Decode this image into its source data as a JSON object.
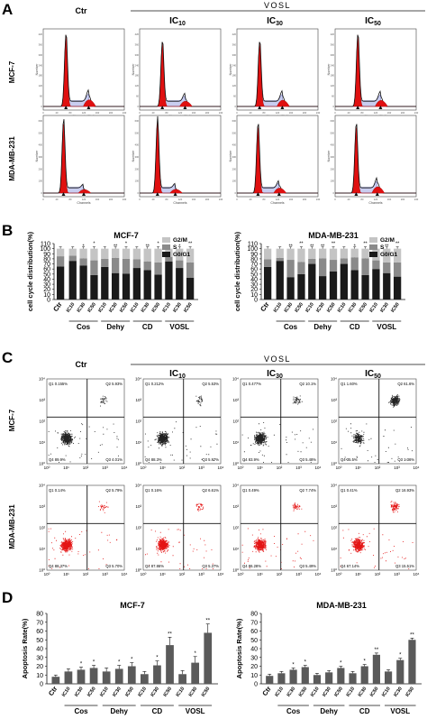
{
  "panels": {
    "A": {
      "letter": "A",
      "ctr_label": "Ctr",
      "group_label": "VOSL",
      "ic_labels": [
        {
          "base": "IC",
          "sub": "10"
        },
        {
          "base": "IC",
          "sub": "30"
        },
        {
          "base": "IC",
          "sub": "50"
        }
      ],
      "row_labels": [
        "MCF-7",
        "MDA-MB-231"
      ],
      "hist_xlabel": "Channels (PI-A)",
      "hist_xlabel_row2": "Channels",
      "hist_ylabel": "Number",
      "hist_ticks": [
        "0",
        "40",
        "80",
        "120",
        "160",
        "200",
        "240"
      ],
      "hist_yticks": [
        "0",
        "60",
        "120",
        "180",
        "240",
        "300",
        "360",
        "420"
      ],
      "hist_yticks_row2": [
        "0",
        "100",
        "200",
        "300",
        "400",
        "500",
        "600"
      ]
    },
    "B": {
      "letter": "B"
    },
    "C": {
      "letter": "C",
      "ctr_label": "Ctr",
      "group_label": "VOSL",
      "ic_labels": [
        {
          "base": "IC",
          "sub": "10"
        },
        {
          "base": "IC",
          "sub": "30"
        },
        {
          "base": "IC",
          "sub": "50"
        }
      ],
      "row_labels": [
        "MCF-7",
        "MDA-MB-231"
      ],
      "axis_ticks": [
        "10⁰",
        "10¹",
        "10²",
        "10³",
        "10⁴"
      ],
      "quadrants": {
        "mcf7": [
          {
            "q1": "Q1 0.155%",
            "q2": "Q2 5.93%",
            "q4": "Q4 89.9%",
            "q3": "Q3 4.01%"
          },
          {
            "q1": "Q1 0.212%",
            "q2": "Q2 5.53%",
            "q4": "Q4 88.3%",
            "q3": "Q3 5.97%"
          },
          {
            "q1": "Q1 0.477%",
            "q2": "Q2 10.1%",
            "q4": "Q4 83.9%",
            "q3": "Q3 5.48%"
          },
          {
            "q1": "Q1 1.60%",
            "q2": "Q2 61.6%",
            "q4": "Q4 35.5%",
            "q3": "Q3 1.36%"
          }
        ],
        "mda": [
          {
            "q1": "Q1 0.14%",
            "q2": "Q2 5.79%",
            "q4": "Q4 88.37%",
            "q3": "Q3 5.70%"
          },
          {
            "q1": "Q1 0.16%",
            "q2": "Q2 6.61%",
            "q4": "Q4 87.86%",
            "q3": "Q3 5.37%"
          },
          {
            "q1": "Q1 0.49%",
            "q2": "Q2 7.74%",
            "q4": "Q4 86.28%",
            "q3": "Q3 5.49%"
          },
          {
            "q1": "Q1 0.41%",
            "q2": "Q2 16.93%",
            "q4": "Q4 67.14%",
            "q3": "Q3 15.51%"
          }
        ]
      }
    },
    "D": {
      "letter": "D"
    }
  },
  "chart_data": [
    {
      "type": "bar",
      "stacked": true,
      "title": "MCF-7",
      "ylabel": "cell cycle distribution(%)",
      "ylim": [
        0,
        110
      ],
      "yticks": [
        0,
        10,
        20,
        30,
        40,
        50,
        60,
        70,
        80,
        90,
        100,
        110
      ],
      "categories": [
        "Ctr",
        "IC10",
        "IC30",
        "IC50",
        "IC10",
        "IC30",
        "IC50",
        "IC10",
        "IC30",
        "IC50",
        "IC10",
        "IC30",
        "IC50"
      ],
      "groups": [
        {
          "label": "Cos",
          "indices": [
            1,
            2,
            3
          ]
        },
        {
          "label": "Dehy",
          "indices": [
            4,
            5,
            6
          ]
        },
        {
          "label": "CD",
          "indices": [
            7,
            8,
            9
          ]
        },
        {
          "label": "VOSL",
          "indices": [
            10,
            11,
            12
          ]
        }
      ],
      "series": [
        {
          "name": "G0/G1",
          "color": "#1a1a1a",
          "values": [
            65,
            76,
            67,
            48,
            64,
            52,
            51,
            62,
            58,
            49,
            75,
            62,
            43
          ]
        },
        {
          "name": "S",
          "color": "#8a8a8a",
          "values": [
            20,
            10,
            14,
            29,
            16,
            30,
            29,
            17,
            17,
            24,
            9,
            15,
            30
          ]
        },
        {
          "name": "G2/M",
          "color": "#c4c4c4",
          "values": [
            15,
            14,
            19,
            23,
            20,
            18,
            20,
            21,
            25,
            27,
            16,
            23,
            27
          ]
        }
      ],
      "annotations": [
        "*",
        "*",
        "**",
        "*",
        "**",
        "*",
        "*",
        "**"
      ]
    },
    {
      "type": "bar",
      "stacked": true,
      "title": "MDA-MB-231",
      "ylabel": "cell cycle distribution(%)",
      "ylim": [
        0,
        110
      ],
      "yticks": [
        0,
        10,
        20,
        30,
        40,
        50,
        60,
        70,
        80,
        90,
        100,
        110
      ],
      "categories": [
        "Ctr",
        "IC10",
        "IC30",
        "IC50",
        "IC10",
        "IC30",
        "IC50",
        "IC10",
        "IC30",
        "IC50",
        "IC10",
        "IC30",
        "IC50"
      ],
      "groups": [
        {
          "label": "Cos",
          "indices": [
            1,
            2,
            3
          ]
        },
        {
          "label": "Dehy",
          "indices": [
            4,
            5,
            6
          ]
        },
        {
          "label": "CD",
          "indices": [
            7,
            8,
            9
          ]
        },
        {
          "label": "VOSL",
          "indices": [
            10,
            11,
            12
          ]
        }
      ],
      "series": [
        {
          "name": "G0/G1",
          "color": "#1a1a1a",
          "values": [
            64,
            76,
            44,
            50,
            70,
            46,
            55,
            70,
            58,
            48,
            60,
            52,
            45
          ]
        },
        {
          "name": "S",
          "color": "#8a8a8a",
          "values": [
            15,
            6,
            34,
            24,
            10,
            35,
            23,
            11,
            25,
            33,
            17,
            21,
            28
          ]
        },
        {
          "name": "G2/M",
          "color": "#c4c4c4",
          "values": [
            21,
            18,
            22,
            26,
            20,
            19,
            22,
            19,
            17,
            19,
            23,
            27,
            27
          ]
        }
      ],
      "annotations": [
        "**",
        "**",
        "**",
        "**",
        "*",
        "**",
        "**",
        "**",
        "**"
      ]
    },
    {
      "type": "bar",
      "title": "MCF-7",
      "ylabel": "Apoptosis Rate(%)",
      "ylim": [
        0,
        80
      ],
      "yticks": [
        0,
        10,
        20,
        30,
        40,
        50,
        60,
        70,
        80
      ],
      "categories": [
        "Ctr",
        "IC10",
        "IC30",
        "IC50",
        "IC10",
        "IC30",
        "IC50",
        "IC10",
        "IC30",
        "IC50",
        "IC10",
        "IC30",
        "IC50"
      ],
      "groups": [
        {
          "label": "Cos",
          "indices": [
            1,
            2,
            3
          ]
        },
        {
          "label": "Dehy",
          "indices": [
            4,
            5,
            6
          ]
        },
        {
          "label": "CD",
          "indices": [
            7,
            8,
            9
          ]
        },
        {
          "label": "VOSL",
          "indices": [
            10,
            11,
            12
          ]
        }
      ],
      "values": [
        8,
        14,
        16,
        18,
        14,
        17,
        20,
        11,
        21,
        44,
        11,
        24,
        58
      ],
      "errors": [
        2,
        3,
        3,
        3,
        4,
        4,
        4,
        3,
        5,
        9,
        4,
        7,
        10
      ],
      "annotations": [
        "",
        "",
        "*",
        "*",
        "",
        "*",
        "*",
        "",
        "*",
        "**",
        "",
        "*",
        "**"
      ],
      "color": "#5a5a5a"
    },
    {
      "type": "bar",
      "title": "MDA-MB-231",
      "ylabel": "Apoptosis Rate(%)",
      "ylim": [
        0,
        80
      ],
      "yticks": [
        0,
        10,
        20,
        30,
        40,
        50,
        60,
        70,
        80
      ],
      "categories": [
        "Ctr",
        "IC10",
        "IC30",
        "IC50",
        "IC10",
        "IC30",
        "IC50",
        "IC10",
        "IC30",
        "IC50",
        "IC10",
        "IC30",
        "IC50"
      ],
      "groups": [
        {
          "label": "Cos",
          "indices": [
            1,
            2,
            3
          ]
        },
        {
          "label": "Dehy",
          "indices": [
            4,
            5,
            6
          ]
        },
        {
          "label": "CD",
          "indices": [
            7,
            8,
            9
          ]
        },
        {
          "label": "VOSL",
          "indices": [
            10,
            11,
            12
          ]
        }
      ],
      "values": [
        9,
        12,
        16,
        19,
        10,
        13,
        18,
        12,
        20,
        33,
        14,
        27,
        50
      ],
      "errors": [
        2,
        2,
        2,
        2,
        2,
        2,
        2,
        2,
        2,
        2,
        2,
        2,
        2
      ],
      "annotations": [
        "",
        "",
        "*",
        "*",
        "",
        "",
        "*",
        "",
        "*",
        "**",
        "",
        "*",
        "**"
      ],
      "color": "#5a5a5a"
    }
  ]
}
